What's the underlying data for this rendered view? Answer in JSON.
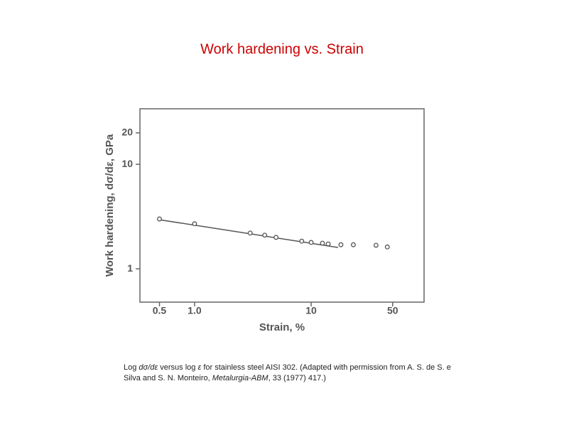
{
  "chart_data": {
    "type": "scatter",
    "title": "Work hardening vs. Strain",
    "x_label": "Strain, %",
    "y_label": "Work hardening, dσ/dε, GPa",
    "log_x": true,
    "log_y": true,
    "color": "#555555",
    "title_color": "#cc0000",
    "x": [
      0.5,
      1.0,
      3.0,
      4.0,
      5.0,
      8.3,
      10,
      12.5,
      14,
      18,
      23,
      36,
      45
    ],
    "values": [
      3.0,
      2.7,
      2.2,
      2.1,
      2.0,
      1.84,
      1.79,
      1.76,
      1.73,
      1.7,
      1.7,
      1.68,
      1.62
    ],
    "fit": {
      "x": [
        0.5,
        17
      ],
      "values": [
        2.95,
        1.6
      ]
    },
    "xlim": [
      0.34,
      93
    ],
    "ylim": [
      0.48,
      34
    ],
    "xticks": [
      0.5,
      {
        "value": 1,
        "label": "1.0"
      },
      10,
      50
    ],
    "yticks": [
      1,
      10,
      20
    ],
    "caption": [
      "Log ",
      "dσ/dε",
      " versus log ",
      "ε",
      " for stainless steel AISI 302. (Adapted with permission from A. S. de S. e Silva and S. N. Monteiro, ",
      "Metalurgia-ABM",
      ", 33 (1977) 417.)"
    ]
  }
}
